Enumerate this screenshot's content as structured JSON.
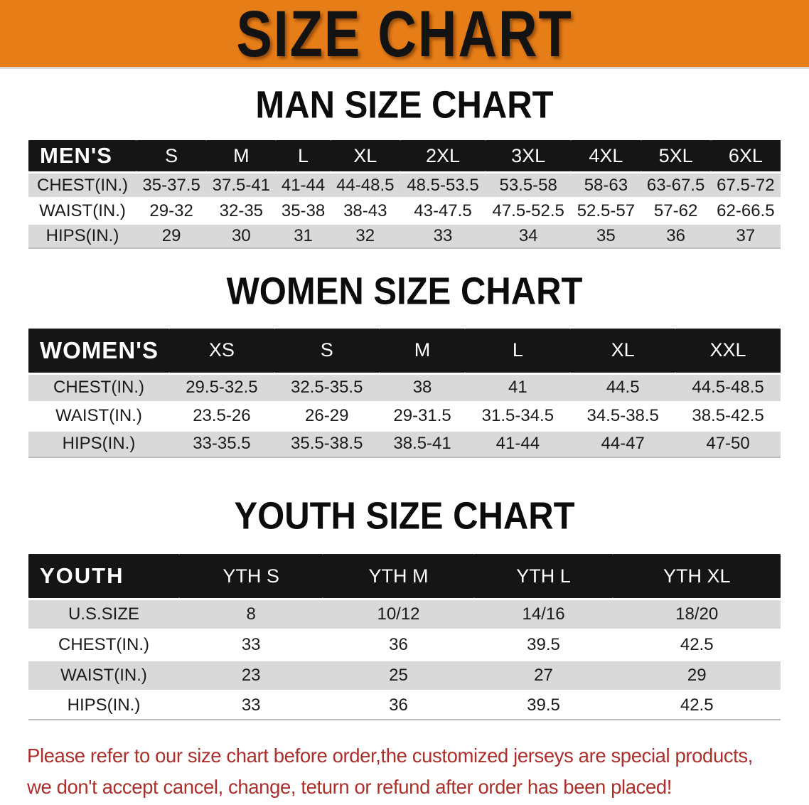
{
  "banner": {
    "title": "SIZE CHART"
  },
  "colors": {
    "banner_bg": "#e67d17",
    "header_bar_bg": "#151515",
    "row_stripe_gray": "#d9d9d9",
    "note_red": "#ab302c"
  },
  "man": {
    "title": "MAN SIZE CHART",
    "table": {
      "header_label": "MEN'S",
      "columns": [
        "S",
        "M",
        "L",
        "XL",
        "2XL",
        "3XL",
        "4XL",
        "5XL",
        "6XL"
      ],
      "rows": [
        {
          "label": "CHEST(IN.)",
          "values": [
            "35-37.5",
            "37.5-41",
            "41-44",
            "44-48.5",
            "48.5-53.5",
            "53.5-58",
            "58-63",
            "63-67.5",
            "67.5-72"
          ]
        },
        {
          "label": "WAIST(IN.)",
          "values": [
            "29-32",
            "32-35",
            "35-38",
            "38-43",
            "43-47.5",
            "47.5-52.5",
            "52.5-57",
            "57-62",
            "62-66.5"
          ]
        },
        {
          "label": "HIPS(IN.)",
          "values": [
            "29",
            "30",
            "31",
            "32",
            "33",
            "34",
            "35",
            "36",
            "37"
          ]
        }
      ]
    }
  },
  "women": {
    "title": "WOMEN SIZE CHART",
    "table": {
      "header_label": "WOMEN'S",
      "columns": [
        "XS",
        "S",
        "M",
        "L",
        "XL",
        "XXL"
      ],
      "rows": [
        {
          "label": "CHEST(IN.)",
          "values": [
            "29.5-32.5",
            "32.5-35.5",
            "38",
            "41",
            "44.5",
            "44.5-48.5"
          ]
        },
        {
          "label": "WAIST(IN.)",
          "values": [
            "23.5-26",
            "26-29",
            "29-31.5",
            "31.5-34.5",
            "34.5-38.5",
            "38.5-42.5"
          ]
        },
        {
          "label": "HIPS(IN.)",
          "values": [
            "33-35.5",
            "35.5-38.5",
            "38.5-41",
            "41-44",
            "44-47",
            "47-50"
          ]
        }
      ]
    }
  },
  "youth": {
    "title": "YOUTH SIZE CHART",
    "table": {
      "header_label": "YOUTH",
      "columns": [
        "YTH S",
        "YTH M",
        "YTH L",
        "YTH XL"
      ],
      "rows": [
        {
          "label": "U.S.SIZE",
          "values": [
            "8",
            "10/12",
            "14/16",
            "18/20"
          ]
        },
        {
          "label": "CHEST(IN.)",
          "values": [
            "33",
            "36",
            "39.5",
            "42.5"
          ]
        },
        {
          "label": "WAIST(IN.)",
          "values": [
            "23",
            "25",
            "27",
            "29"
          ]
        },
        {
          "label": "HIPS(IN.)",
          "values": [
            "33",
            "36",
            "39.5",
            "42.5"
          ]
        }
      ]
    }
  },
  "note": {
    "line1": "Please refer to our size chart before order,the customized jerseys are special products,",
    "line2": "we don't accept cancel, change, teturn or refund after order has been placed!"
  }
}
